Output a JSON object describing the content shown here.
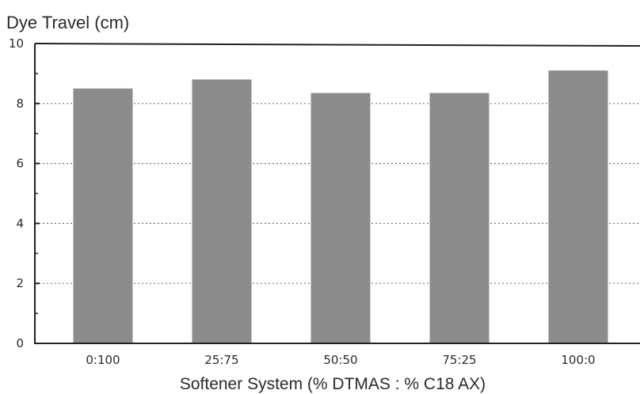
{
  "chart_data": {
    "type": "bar",
    "title": "Dye Travel (cm)",
    "xlabel": "Softener System (% DTMAS : % C18 AX)",
    "ylabel": "",
    "categories": [
      "0:100",
      "25:75",
      "50:50",
      "75:25",
      "100:0"
    ],
    "values": [
      8.5,
      8.8,
      8.35,
      8.35,
      9.1
    ],
    "ylim": [
      0,
      10
    ],
    "yticks": [
      0,
      2,
      4,
      6,
      8,
      10
    ],
    "grid": true,
    "colors": {
      "bar": "#8c8c8c",
      "axis": "#222222",
      "grid": "#777777"
    }
  }
}
